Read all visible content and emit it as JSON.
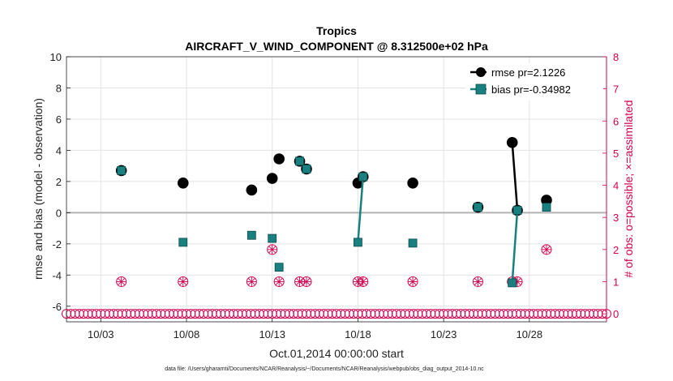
{
  "chart_data": {
    "type": "line",
    "title": "Tropics",
    "subtitle": "AIRCRAFT_V_WIND_COMPONENT @ 8.312500e+02 hPa",
    "xlabel": "Oct.01,2014 00:00:00 start",
    "ylabel": "rmse and bias (model - observation)",
    "y2label": "# of obs: o=possible; ×=assimilated",
    "xlim": [
      1,
      32.5
    ],
    "ylim": [
      -7,
      10
    ],
    "y2lim": [
      -0.25,
      8
    ],
    "x_ticks": [
      3,
      8,
      13,
      18,
      23,
      28
    ],
    "x_ticklabels": [
      "10/03",
      "10/08",
      "10/13",
      "10/18",
      "10/23",
      "10/28"
    ],
    "y_ticks": [
      -6,
      -4,
      -2,
      0,
      2,
      4,
      6,
      8,
      10
    ],
    "y2_ticks": [
      0,
      1,
      2,
      3,
      4,
      5,
      6,
      7,
      8
    ],
    "zero_line": 0,
    "series": [
      {
        "name": "rmse pr=2.1226",
        "color": "#000000",
        "marker": "circle",
        "points": [
          [
            4.2,
            2.7
          ],
          [
            7.8,
            1.9
          ],
          [
            11.8,
            1.45
          ],
          [
            13.0,
            2.2
          ],
          [
            13.4,
            3.45
          ],
          [
            14.6,
            3.3
          ],
          [
            15.0,
            2.8
          ],
          [
            18.0,
            1.9
          ],
          [
            18.3,
            2.3
          ],
          [
            21.2,
            1.9
          ],
          [
            25.0,
            0.35
          ],
          [
            27.0,
            4.5
          ],
          [
            27.3,
            0.15
          ],
          [
            29.0,
            0.8
          ]
        ],
        "connected": [
          [
            27.0,
            27.3
          ]
        ]
      },
      {
        "name": "bias pr=-0.34982",
        "color": "#1a7f7f",
        "marker": "square",
        "points": [
          [
            4.2,
            2.7
          ],
          [
            7.8,
            -1.9
          ],
          [
            11.8,
            -1.45
          ],
          [
            13.0,
            -1.65
          ],
          [
            13.4,
            -3.5
          ],
          [
            14.6,
            3.3
          ],
          [
            15.0,
            2.8
          ],
          [
            18.0,
            -1.9
          ],
          [
            18.3,
            2.3
          ],
          [
            21.2,
            -1.95
          ],
          [
            25.0,
            0.35
          ],
          [
            27.0,
            -4.5
          ],
          [
            27.3,
            0.15
          ],
          [
            29.0,
            0.35
          ]
        ],
        "connected": [
          [
            18.0,
            18.3
          ],
          [
            27.0,
            27.3
          ]
        ]
      }
    ],
    "obs_possible": {
      "color": "#d6004d",
      "marker": "circle",
      "points": [
        [
          4.2,
          1
        ],
        [
          7.8,
          1
        ],
        [
          11.8,
          1
        ],
        [
          13.0,
          2
        ],
        [
          13.4,
          1
        ],
        [
          14.6,
          1
        ],
        [
          15.0,
          1
        ],
        [
          18.0,
          1
        ],
        [
          18.3,
          1
        ],
        [
          21.2,
          1
        ],
        [
          25.0,
          1
        ],
        [
          27.0,
          1
        ],
        [
          27.3,
          1
        ],
        [
          29.0,
          2
        ]
      ],
      "zero_x_start": 1.0,
      "zero_x_end": 32.5,
      "zero_x_step": 0.25
    },
    "legend": {
      "location": "top-right"
    },
    "footnote": "data file: /Users/gharamti/Documents/NCAR/Reanalysis/~/Documents/NCAR/Reanalysis/webpub/obs_diag_output_2014-10.nc"
  }
}
